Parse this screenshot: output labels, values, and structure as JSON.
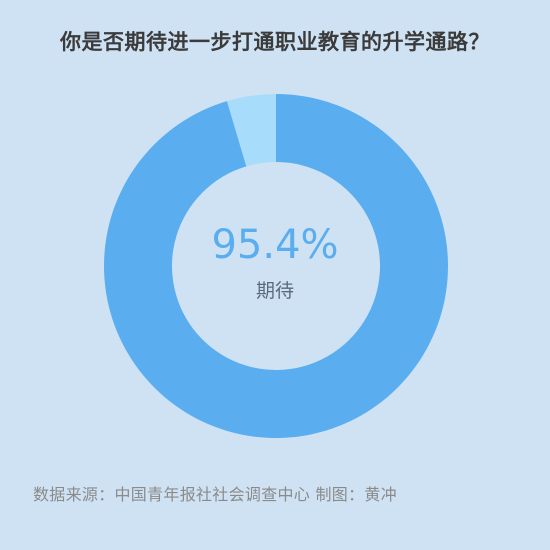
{
  "chart_data": {
    "type": "pie",
    "title": "你是否期待进一步打通职业教育的升学通路？",
    "slices": [
      {
        "label": "期待",
        "value": 95.4,
        "color": "#5aaef0"
      },
      {
        "label": "",
        "value": 4.6,
        "color": "#a7dcfb"
      }
    ],
    "center_value": "95.4%",
    "center_label": "期待"
  },
  "footer": {
    "source": "数据来源：中国青年报社社会调查中心 制图：黄冲"
  }
}
